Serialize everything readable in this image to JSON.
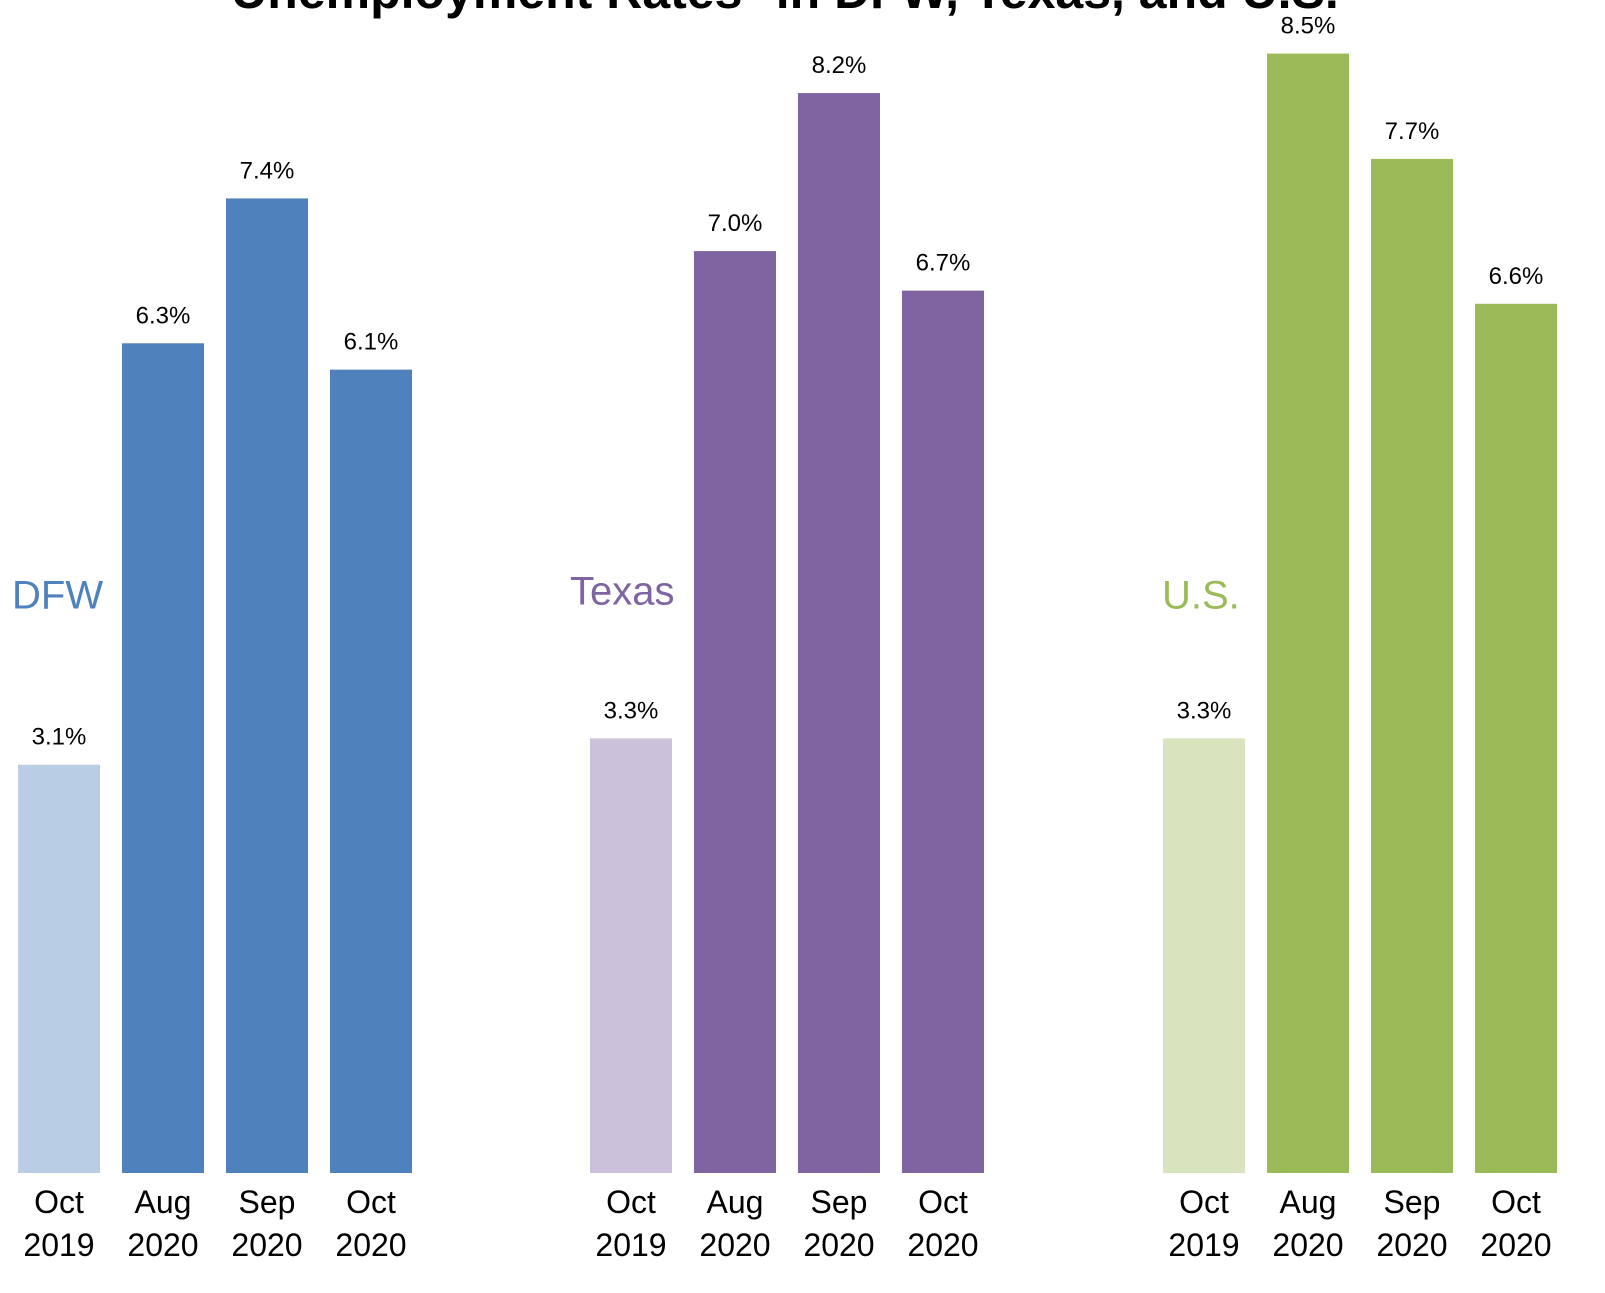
{
  "title": "Unemployment Rates* in DFW, Texas, and U.S.",
  "chart_data": [
    {
      "type": "bar",
      "name": "DFW",
      "name_color": "#4f81bd",
      "categories": [
        [
          "Oct",
          "2019"
        ],
        [
          "Aug",
          "2020"
        ],
        [
          "Sep",
          "2020"
        ],
        [
          "Oct",
          "2020"
        ]
      ],
      "values": [
        3.1,
        6.3,
        7.4,
        6.1
      ],
      "value_labels": [
        "3.1%",
        "6.3%",
        "7.4%",
        "6.1%"
      ],
      "colors": [
        "#b9cde5",
        "#4f81bd",
        "#4f81bd",
        "#4f81bd"
      ],
      "category_colors": [
        "#b9cde5",
        "#000000",
        "#000000",
        "#000000"
      ],
      "ylim": [
        0,
        9
      ]
    },
    {
      "type": "bar",
      "name": "Texas",
      "name_color": "#8064a2",
      "categories": [
        [
          "Oct",
          "2019"
        ],
        [
          "Aug",
          "2020"
        ],
        [
          "Sep",
          "2020"
        ],
        [
          "Oct",
          "2020"
        ]
      ],
      "values": [
        3.3,
        7.0,
        8.2,
        6.7
      ],
      "value_labels": [
        "3.3%",
        "7.0%",
        "8.2%",
        "6.7%"
      ],
      "colors": [
        "#ccc1da",
        "#8064a2",
        "#8064a2",
        "#8064a2"
      ],
      "category_colors": [
        "#ccc1da",
        "#000000",
        "#000000",
        "#000000"
      ],
      "ylim": [
        0,
        9
      ]
    },
    {
      "type": "bar",
      "name": "U.S.",
      "name_color": "#9bbb59",
      "categories": [
        [
          "Oct",
          "2019"
        ],
        [
          "Aug",
          "2020"
        ],
        [
          "Sep",
          "2020"
        ],
        [
          "Oct",
          "2020"
        ]
      ],
      "values": [
        3.3,
        8.5,
        7.7,
        6.6
      ],
      "value_labels": [
        "3.3%",
        "8.5%",
        "7.7%",
        "6.6%"
      ],
      "colors": [
        "#d7e4bd",
        "#9bbb59",
        "#9bbb59",
        "#9bbb59"
      ],
      "category_colors": [
        "#a6a6a6",
        "#000000",
        "#000000",
        "#000000"
      ],
      "ylim": [
        0,
        9
      ]
    }
  ]
}
